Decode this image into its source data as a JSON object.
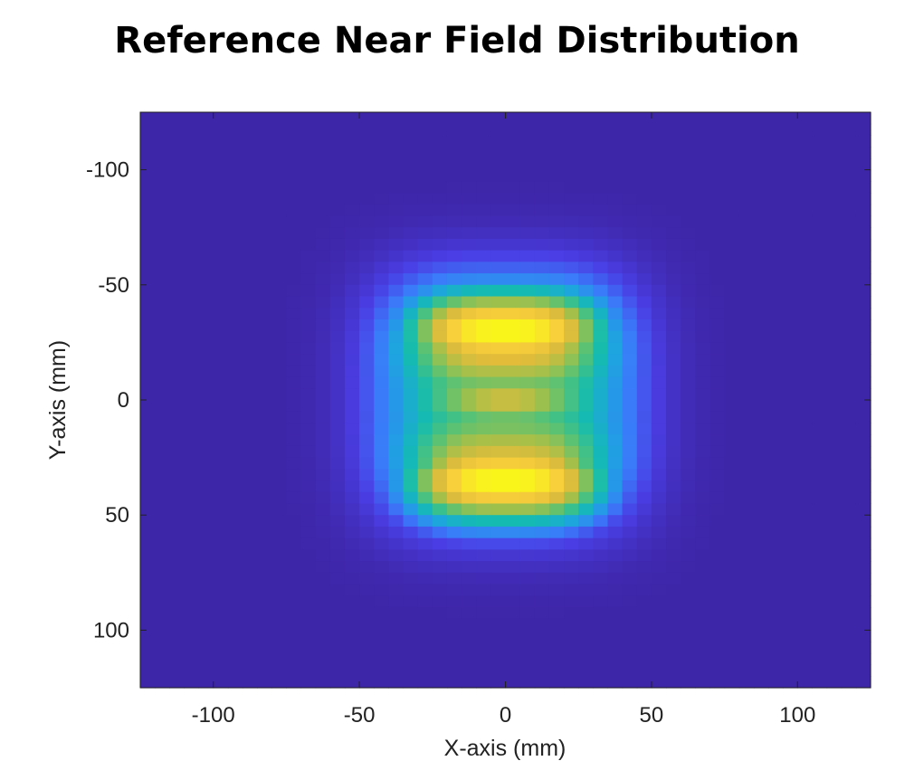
{
  "chart_data": {
    "type": "heatmap",
    "title": "Reference Near Field Distribution",
    "xlabel": "X-axis (mm)",
    "ylabel": "Y-axis (mm)",
    "xlim": [
      -125,
      125
    ],
    "ylim": [
      -125,
      125
    ],
    "y_direction": "top-to-bottom increasing",
    "x_ticks": [
      "-100",
      "-50",
      "0",
      "50",
      "100"
    ],
    "y_ticks": [
      "-100",
      "-50",
      "0",
      "50",
      "100"
    ],
    "grid_step_mm": 5,
    "colormap": "parula",
    "colors": [
      "#3e26a8",
      "#4a3ee4",
      "#3a7bfa",
      "#1ea4e0",
      "#14bcb0",
      "#50c27a",
      "#a3c04a",
      "#e4bc3a",
      "#fbd33c",
      "#f9fb15"
    ],
    "field_model": {
      "aperture_half_width_mm": 45,
      "aperture_half_height_mm": 55,
      "lobes": [
        {
          "x_mm": 0,
          "y_mm": -30,
          "half_width_mm": 30,
          "half_height_mm": 15,
          "peak": 1.0
        },
        {
          "x_mm": 0,
          "y_mm": 35,
          "half_width_mm": 30,
          "half_height_mm": 15,
          "peak": 1.0
        }
      ],
      "center_level": 0.72,
      "edge_level": 0.5,
      "background_level": 0.0
    }
  }
}
